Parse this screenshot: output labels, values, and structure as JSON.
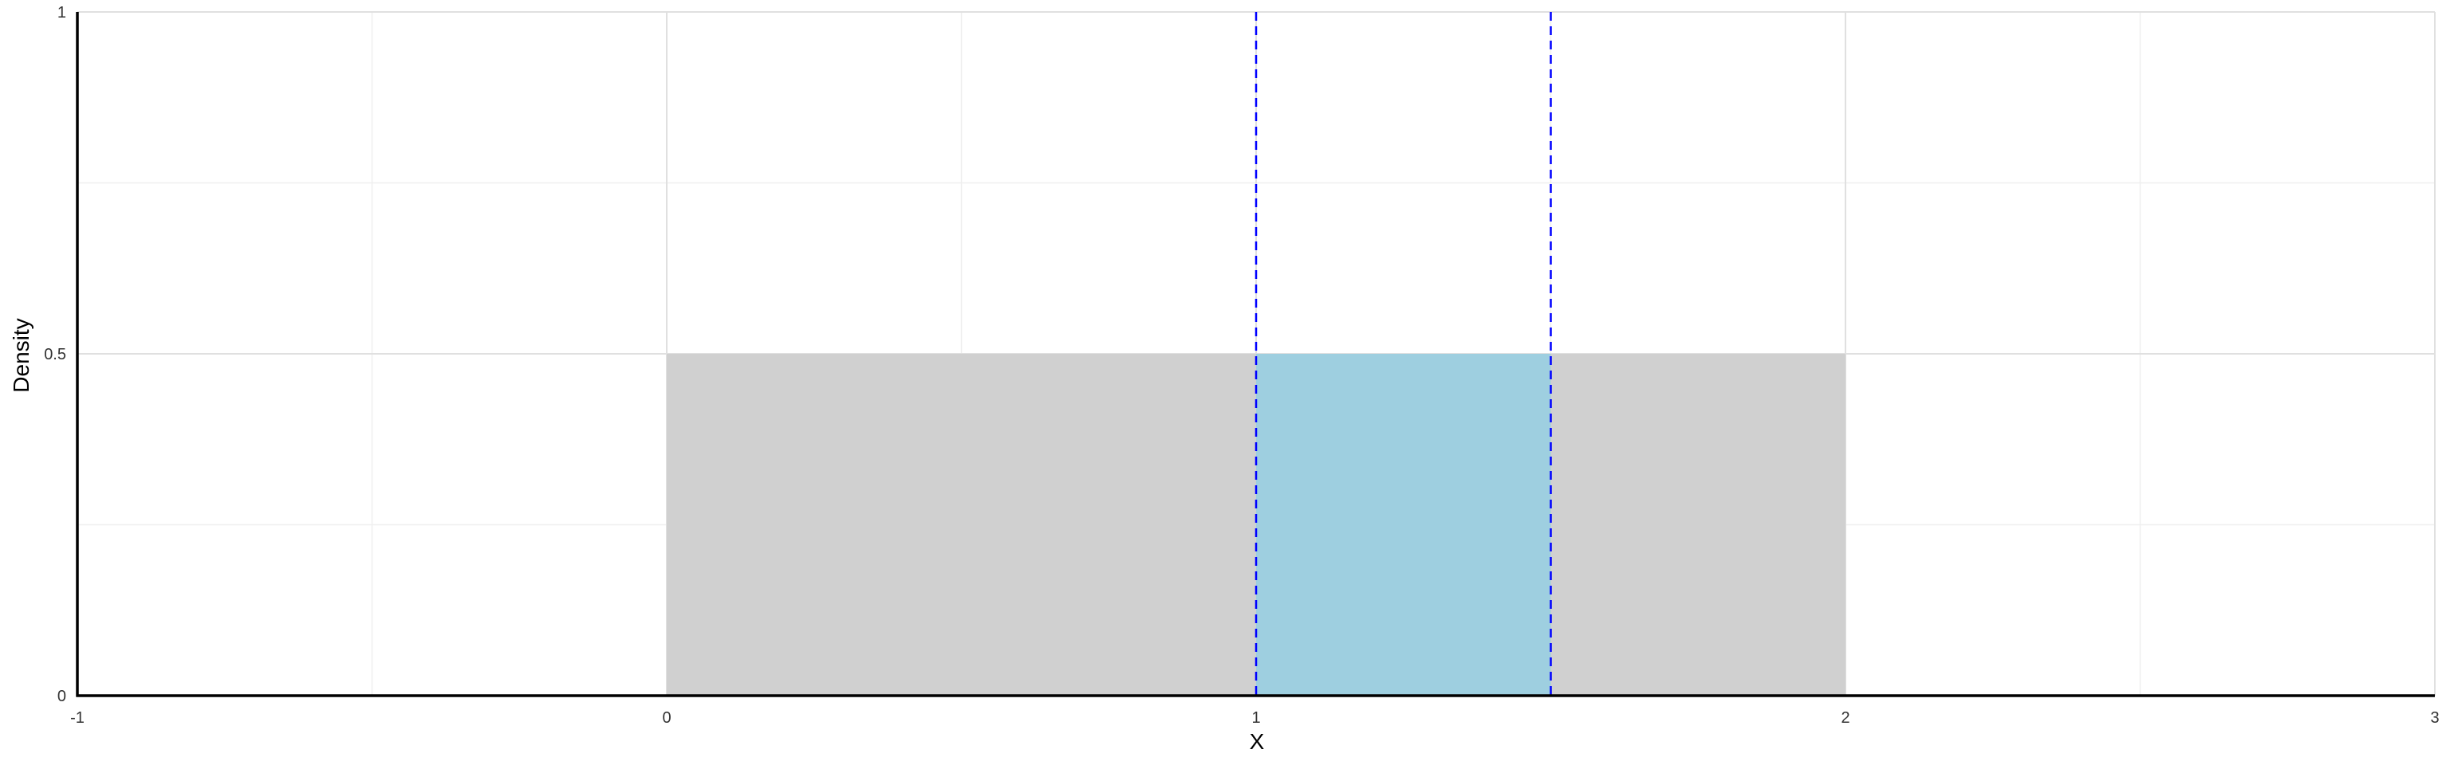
{
  "chart_data": {
    "type": "area",
    "title": "",
    "xlabel": "X",
    "ylabel": "Density",
    "xlim": [
      -1,
      3
    ],
    "ylim": [
      0,
      1
    ],
    "x_ticks": [
      -1,
      0,
      1,
      2,
      3
    ],
    "x_tick_labels": [
      "-1",
      "0",
      "1",
      "2",
      "3"
    ],
    "x_minor_grid": [
      -0.5,
      0.5,
      1.5,
      2.5
    ],
    "y_ticks": [
      0,
      0.5,
      1
    ],
    "y_tick_labels": [
      "0",
      "0.5",
      "1"
    ],
    "y_minor_grid": [
      0.25,
      0.75
    ],
    "grid": true,
    "density": {
      "x": [
        0,
        2
      ],
      "y": 0.5,
      "color": "#d0d0d0"
    },
    "highlight": {
      "x": [
        1,
        1.5
      ],
      "y": 0.5,
      "color": "#9ecfe0"
    },
    "reference_lines": {
      "x": [
        1,
        1.5
      ],
      "color": "#0000ff",
      "style": "dashed"
    },
    "grid_colors": {
      "major": "#e0e0e0",
      "minor": "#efefef"
    },
    "axis_color": "#000000"
  }
}
